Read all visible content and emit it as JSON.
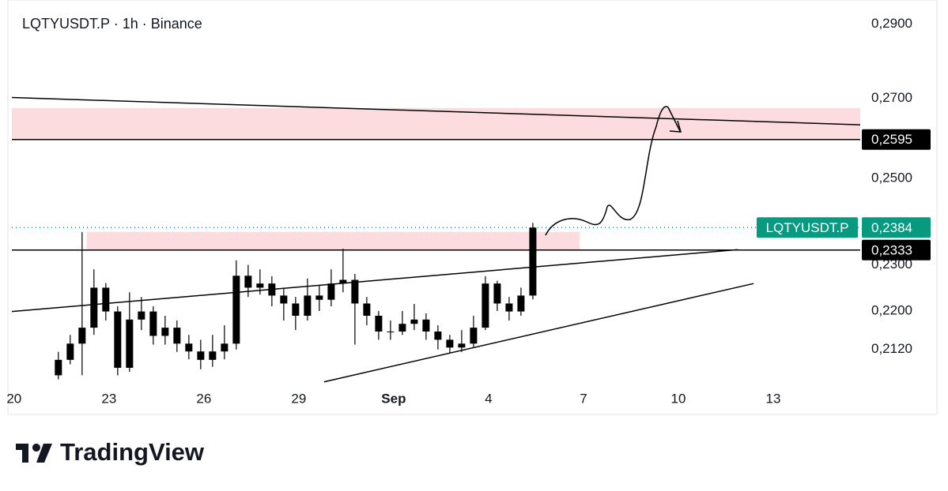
{
  "chart_data": {
    "type": "candlestick",
    "title": "LQTYUSDT.P · 1h · Binance",
    "color": "#000000",
    "log_scale": true,
    "x": [
      21.4,
      21.775,
      22.15,
      22.525,
      22.9,
      23.275,
      23.65,
      24.025,
      24.4,
      24.775,
      25.15,
      25.525,
      25.9,
      26.275,
      26.65,
      27.025,
      27.4,
      27.775,
      28.15,
      28.525,
      28.9,
      29.275,
      29.65,
      30.025,
      30.4,
      30.775,
      31.15,
      31.525,
      31.9,
      32.275,
      32.65,
      33.025,
      33.4,
      33.775,
      34.15,
      34.525,
      34.9,
      35.275,
      35.65,
      36.025,
      36.4
    ],
    "open": [
      0.2068,
      0.2099,
      0.2132,
      0.2165,
      0.225,
      0.2199,
      0.2083,
      0.2182,
      0.2199,
      0.2148,
      0.2165,
      0.2132,
      0.2116,
      0.2099,
      0.2116,
      0.2132,
      0.2276,
      0.225,
      0.2259,
      0.2233,
      0.2216,
      0.219,
      0.2233,
      0.2224,
      0.2259,
      0.2267,
      0.2216,
      0.219,
      0.2157,
      0.2157,
      0.2173,
      0.2182,
      0.2157,
      0.214,
      0.2124,
      0.2132,
      0.2165,
      0.2259,
      0.2216,
      0.2199,
      0.2233
    ],
    "high": [
      0.2115,
      0.215,
      0.2374,
      0.229,
      0.226,
      0.221,
      0.224,
      0.223,
      0.221,
      0.219,
      0.218,
      0.215,
      0.214,
      0.215,
      0.217,
      0.231,
      0.23,
      0.229,
      0.2275,
      0.225,
      0.223,
      0.227,
      0.2255,
      0.229,
      0.2336,
      0.228,
      0.223,
      0.22,
      0.218,
      0.22,
      0.2215,
      0.2195,
      0.217,
      0.215,
      0.216,
      0.219,
      0.2275,
      0.2265,
      0.223,
      0.225,
      0.2395
    ],
    "low": [
      0.206,
      0.209,
      0.2068,
      0.215,
      0.218,
      0.2068,
      0.2075,
      0.216,
      0.213,
      0.213,
      0.2115,
      0.21,
      0.208,
      0.2085,
      0.21,
      0.212,
      0.223,
      0.2235,
      0.221,
      0.218,
      0.216,
      0.218,
      0.22,
      0.221,
      0.224,
      0.213,
      0.217,
      0.214,
      0.214,
      0.215,
      0.216,
      0.214,
      0.212,
      0.2113,
      0.2115,
      0.2125,
      0.216,
      0.22,
      0.218,
      0.219,
      0.2225
    ],
    "close": [
      0.2099,
      0.2132,
      0.2165,
      0.225,
      0.2199,
      0.2083,
      0.2182,
      0.2199,
      0.2148,
      0.2165,
      0.2132,
      0.2116,
      0.2099,
      0.2116,
      0.2132,
      0.2276,
      0.225,
      0.2259,
      0.2233,
      0.2216,
      0.219,
      0.2233,
      0.2224,
      0.2259,
      0.2267,
      0.2216,
      0.219,
      0.2157,
      0.2157,
      0.2173,
      0.2182,
      0.2157,
      0.214,
      0.2124,
      0.2132,
      0.2165,
      0.2259,
      0.2216,
      0.2199,
      0.2233,
      0.2384
    ],
    "xlim": [
      19.93,
      46.75
    ],
    "xticks": [
      20,
      23,
      26,
      29,
      {
        "value": 32,
        "label": "Sep"
      },
      {
        "value": 35,
        "label": "4"
      },
      {
        "value": 38,
        "label": "7"
      },
      {
        "value": 41,
        "label": "10"
      },
      {
        "value": 44,
        "label": "13"
      }
    ],
    "ylim": [
      0.2053,
      0.2968
    ],
    "yticks": [
      {
        "value": 0.29,
        "label": "0,2900"
      },
      {
        "value": 0.27,
        "label": "0,2700"
      },
      {
        "value": 0.25,
        "label": "0,2500"
      },
      {
        "value": 0.23,
        "label": "0,2300"
      },
      {
        "value": 0.22,
        "label": "0,2200"
      },
      {
        "value": 0.212,
        "label": "0,2120"
      }
    ],
    "zones": [
      {
        "x": [
          19.93,
          46.75
        ],
        "y": [
          0.2595,
          0.2675
        ],
        "color": "#fddcdf"
      },
      {
        "x": [
          22.3,
          37.875
        ],
        "y": [
          0.2333,
          0.2374
        ],
        "color": "#fddcdf"
      }
    ],
    "trendlines": [
      {
        "x": [
          19.93,
          46.75
        ],
        "y": [
          0.2702,
          0.2632
        ]
      },
      {
        "x": [
          19.93,
          42.88
        ],
        "y": [
          0.2199,
          0.2334
        ]
      },
      {
        "x": [
          29.8,
          43.38
        ],
        "y": [
          0.2055,
          0.2259
        ]
      }
    ],
    "price_lines": [
      {
        "value": 0.2595,
        "label": "0,2595"
      },
      {
        "value": 0.2333,
        "label": "0,2333"
      }
    ],
    "last_price": {
      "name": "LQTYUSDT.P",
      "value": 0.2384,
      "label": "0,2384",
      "color": "#089981"
    }
  },
  "branding": "TradingView"
}
